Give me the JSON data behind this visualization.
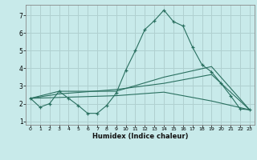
{
  "xlabel": "Humidex (Indice chaleur)",
  "bg_color": "#c8eaea",
  "grid_color": "#b0d0d0",
  "line_color": "#2a7060",
  "xlim": [
    -0.5,
    23.5
  ],
  "ylim": [
    0.8,
    7.6
  ],
  "xticks": [
    0,
    1,
    2,
    3,
    4,
    5,
    6,
    7,
    8,
    9,
    10,
    11,
    12,
    13,
    14,
    15,
    16,
    17,
    18,
    19,
    20,
    21,
    22,
    23
  ],
  "yticks": [
    1,
    2,
    3,
    4,
    5,
    6,
    7
  ],
  "main_line_x": [
    0,
    1,
    2,
    3,
    4,
    5,
    6,
    7,
    8,
    9,
    10,
    11,
    12,
    13,
    14,
    15,
    16,
    17,
    18,
    19,
    20,
    21,
    22,
    23
  ],
  "main_line_y": [
    2.3,
    1.8,
    2.0,
    2.7,
    2.3,
    1.9,
    1.45,
    1.45,
    1.9,
    2.6,
    3.9,
    5.0,
    6.2,
    6.7,
    7.3,
    6.65,
    6.4,
    5.2,
    4.2,
    3.8,
    3.15,
    2.45,
    1.7,
    1.65
  ],
  "line2_x": [
    0,
    3,
    9,
    14,
    19,
    23
  ],
  "line2_y": [
    2.3,
    2.7,
    2.7,
    3.5,
    4.1,
    1.65
  ],
  "line3_x": [
    0,
    3,
    9,
    14,
    19,
    23
  ],
  "line3_y": [
    2.3,
    2.55,
    2.8,
    3.15,
    3.65,
    1.65
  ],
  "line4_x": [
    0,
    3,
    9,
    14,
    19,
    23
  ],
  "line4_y": [
    2.3,
    2.35,
    2.45,
    2.65,
    2.15,
    1.65
  ]
}
